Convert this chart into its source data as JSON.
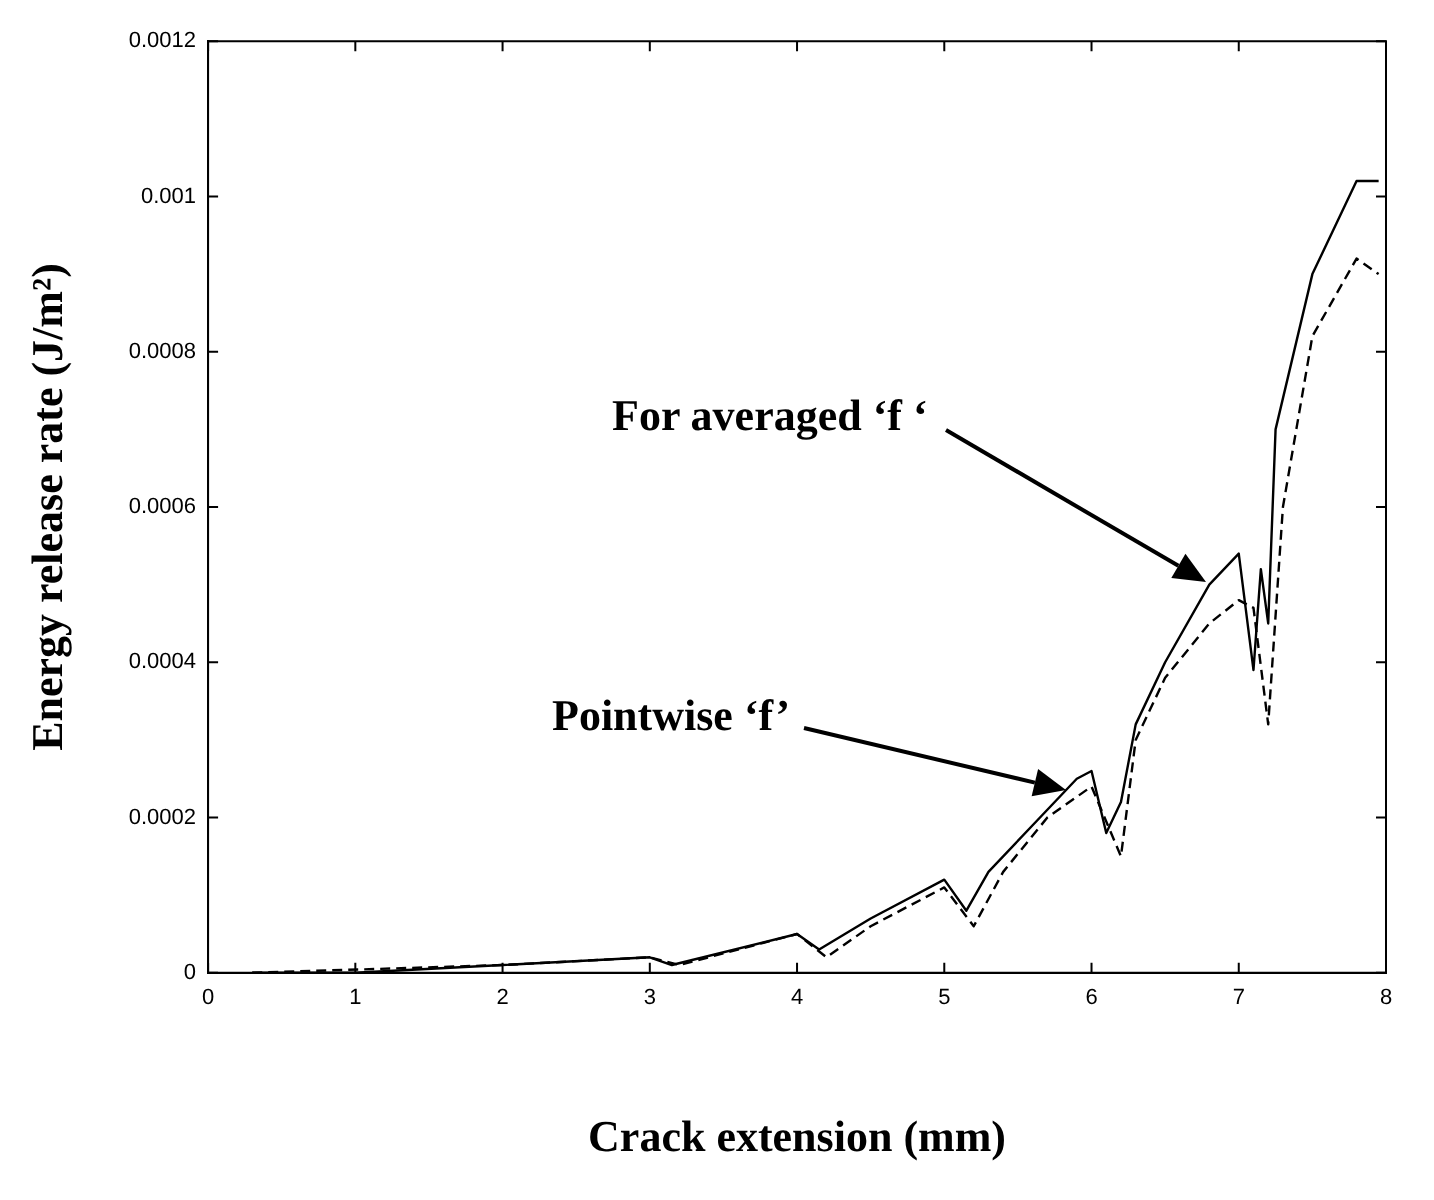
{
  "chart_data": {
    "type": "line",
    "xlabel": "Crack extension (mm)",
    "ylabel": "Energy release rate (J/m²)",
    "xlim": [
      0,
      8
    ],
    "xticks": [
      0,
      1,
      2,
      3,
      4,
      5,
      6,
      7,
      8
    ],
    "ylim": [
      0,
      0.0012
    ],
    "yticks": [
      0,
      0.0002,
      0.0004,
      0.0006,
      0.0008,
      0.001,
      0.0012
    ],
    "grid": false,
    "legend": false,
    "marker": "none",
    "series": [
      {
        "color": "#000000",
        "line_style": "solid",
        "x": [
          0.3,
          1,
          2,
          3,
          3.15,
          4,
          4.15,
          4.5,
          5,
          5.15,
          5.3,
          5.6,
          5.9,
          6,
          6.1,
          6.2,
          6.3,
          6.5,
          6.8,
          7,
          7.1,
          7.15,
          7.2,
          7.25,
          7.5,
          7.8,
          7.95
        ],
        "values": [
          0,
          0,
          1e-05,
          2e-05,
          1e-05,
          5e-05,
          3e-05,
          7e-05,
          0.00012,
          8e-05,
          0.00013,
          0.00019,
          0.00025,
          0.00026,
          0.00018,
          0.00022,
          0.00032,
          0.0004,
          0.0005,
          0.00054,
          0.00039,
          0.00052,
          0.00045,
          0.0007,
          0.0009,
          0.00102,
          0.00102
        ]
      },
      {
        "color": "#000000",
        "line_style": "dashed",
        "x": [
          0.3,
          2,
          3,
          3.2,
          4,
          4.2,
          4.5,
          5,
          5.2,
          5.4,
          5.7,
          6,
          6.2,
          6.3,
          6.5,
          6.8,
          7,
          7.1,
          7.2,
          7.3,
          7.5,
          7.8,
          7.95
        ],
        "values": [
          0,
          1e-05,
          2e-05,
          1e-05,
          5e-05,
          2e-05,
          6e-05,
          0.00011,
          6e-05,
          0.00013,
          0.0002,
          0.00024,
          0.00015,
          0.0003,
          0.00038,
          0.00045,
          0.00048,
          0.00047,
          0.00032,
          0.0006,
          0.00082,
          0.00092,
          0.0009
        ]
      }
    ],
    "annotations": [
      "For averaged ‘f ‘",
      "Pointwise ‘f’"
    ]
  }
}
